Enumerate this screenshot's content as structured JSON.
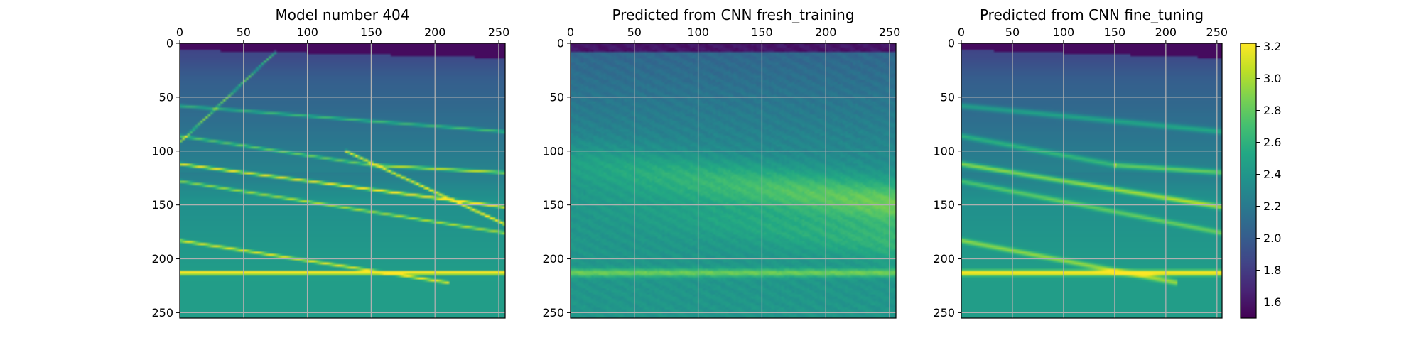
{
  "chart_data": [
    {
      "type": "heatmap",
      "title": "Model number 404",
      "variant": "model",
      "xlim": [
        0,
        255
      ],
      "ylim": [
        255,
        0
      ],
      "x_ticks": [
        0,
        50,
        100,
        150,
        200,
        250
      ],
      "y_ticks": [
        0,
        50,
        100,
        150,
        200,
        250
      ],
      "x_axis_position": "top",
      "grid": true,
      "colormap": "viridis"
    },
    {
      "type": "heatmap",
      "title": "Predicted from CNN fresh_training",
      "variant": "fresh",
      "xlim": [
        0,
        255
      ],
      "ylim": [
        255,
        0
      ],
      "x_ticks": [
        0,
        50,
        100,
        150,
        200,
        250
      ],
      "y_ticks": [
        0,
        50,
        100,
        150,
        200,
        250
      ],
      "x_axis_position": "top",
      "grid": true,
      "colormap": "viridis"
    },
    {
      "type": "heatmap",
      "title": "Predicted from CNN fine_tuning",
      "variant": "fine",
      "xlim": [
        0,
        255
      ],
      "ylim": [
        255,
        0
      ],
      "x_ticks": [
        0,
        50,
        100,
        150,
        200,
        250
      ],
      "y_ticks": [
        0,
        50,
        100,
        150,
        200,
        250
      ],
      "x_axis_position": "top",
      "grid": true,
      "colormap": "viridis"
    }
  ],
  "colorbar": {
    "range": [
      1.5,
      3.22
    ],
    "ticks": [
      1.6,
      1.8,
      2.0,
      2.2,
      2.4,
      2.6,
      2.8,
      3.0,
      3.2
    ],
    "colormap": "viridis",
    "placement": "right"
  }
}
